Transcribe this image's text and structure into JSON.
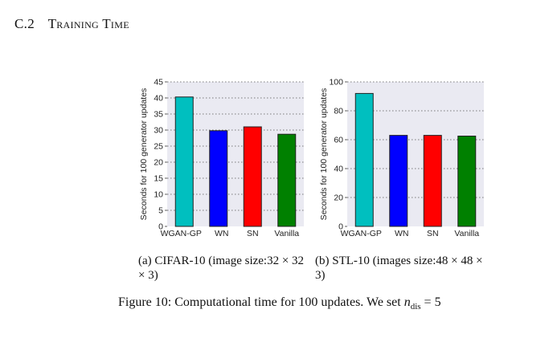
{
  "section": {
    "number": "C.2",
    "title": "Training Time"
  },
  "chart_data": [
    {
      "type": "bar",
      "ylabel": "Seconds for 100 generator updates",
      "categories": [
        "WGAN-GP",
        "WN",
        "SN",
        "Vanilla"
      ],
      "values": [
        40.3,
        29.8,
        31.0,
        28.7
      ],
      "colors": [
        "#00bfbf",
        "#0000ff",
        "#ff0000",
        "#008000"
      ],
      "ylim": [
        0,
        45
      ],
      "yticks": [
        0,
        5,
        10,
        15,
        20,
        25,
        30,
        35,
        40,
        45
      ],
      "grid": true,
      "caption": "(a)  CIFAR-10 (image size:32 × 32 × 3)"
    },
    {
      "type": "bar",
      "ylabel": "Seconds for 100 generator updates",
      "categories": [
        "WGAN-GP",
        "WN",
        "SN",
        "Vanilla"
      ],
      "values": [
        92,
        63,
        63,
        62.5
      ],
      "colors": [
        "#00bfbf",
        "#0000ff",
        "#ff0000",
        "#008000"
      ],
      "ylim": [
        0,
        100
      ],
      "yticks": [
        0,
        20,
        40,
        60,
        80,
        100
      ],
      "grid": true,
      "caption": "(b)  STL-10 (images size:48 × 48 × 3)"
    }
  ],
  "figure_caption": {
    "prefix": "Figure 10: Computational time for 100 updates. We set",
    "var": "n",
    "sub": "dis",
    "suffix": "= 5"
  }
}
